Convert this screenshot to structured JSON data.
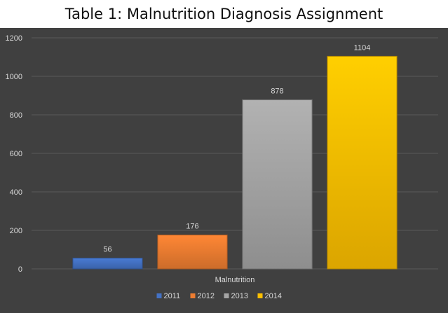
{
  "chart_data": {
    "type": "bar",
    "title": "Table 1:  Malnutrition Diagnosis Assignment",
    "categories": [
      "Malnutrition"
    ],
    "series": [
      {
        "name": "2011",
        "values": [
          56
        ],
        "color": "#4472c4"
      },
      {
        "name": "2012",
        "values": [
          176
        ],
        "color": "#ed7d31"
      },
      {
        "name": "2013",
        "values": [
          878
        ],
        "color": "#a5a5a5"
      },
      {
        "name": "2014",
        "values": [
          1104
        ],
        "color": "#ffc000"
      }
    ],
    "ylim": [
      0,
      1200
    ],
    "yticks": [
      0,
      200,
      400,
      600,
      800,
      1000,
      1200
    ],
    "ytick_labels": [
      "0",
      "200",
      "400",
      "600",
      "800",
      "1000",
      "1200"
    ],
    "grid": true,
    "legend_position": "bottom",
    "background": "#404040"
  }
}
